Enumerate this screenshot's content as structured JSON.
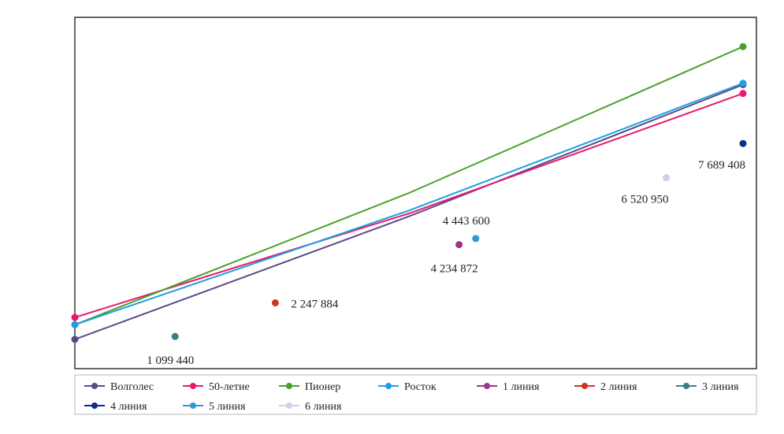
{
  "chart_data": {
    "type": "line",
    "x": [
      0,
      1,
      2
    ],
    "ylim": [
      0,
      12000000
    ],
    "grid": false,
    "legend_position": "bottom",
    "series": [
      {
        "name": "Волголес",
        "color": "#5a4a8a",
        "kind": "line",
        "values": [
          1000000,
          5200000,
          9700000
        ]
      },
      {
        "name": "50-летие",
        "color": "#e8196e",
        "kind": "line",
        "values": [
          1750000,
          5300000,
          9400000
        ]
      },
      {
        "name": "Пионер",
        "color": "#4aa02c",
        "kind": "line",
        "values": [
          1500000,
          6000000,
          11000000
        ]
      },
      {
        "name": "Росток",
        "color": "#1ea0e0",
        "kind": "line",
        "values": [
          1500000,
          5400000,
          9750000
        ]
      }
    ],
    "points": [
      {
        "name": "1 линия",
        "color": "#a0358a",
        "x": 1.15,
        "y": 4234872,
        "label": "4 234 872",
        "label_pos": "below"
      },
      {
        "name": "2 линия",
        "color": "#d0341e",
        "x": 0.6,
        "y": 2247884,
        "label": "2 247 884",
        "label_pos": "right"
      },
      {
        "name": "3 линия",
        "color": "#3a7e88",
        "x": 0.3,
        "y": 1099440,
        "label": "1 099 440",
        "label_pos": "below"
      },
      {
        "name": "4 линия",
        "color": "#0e2a8a",
        "x": 2.0,
        "y": 7689408,
        "label": "7 689 408",
        "label_pos": "below-left"
      },
      {
        "name": "5 линия",
        "color": "#2f97d6",
        "x": 1.2,
        "y": 4443600,
        "label": "4 443 600",
        "label_pos": "above-left"
      },
      {
        "name": "6 линия",
        "color": "#c9d3ea",
        "x": 1.77,
        "y": 6520950,
        "label": "6 520 950",
        "label_pos": "below-left"
      }
    ]
  }
}
